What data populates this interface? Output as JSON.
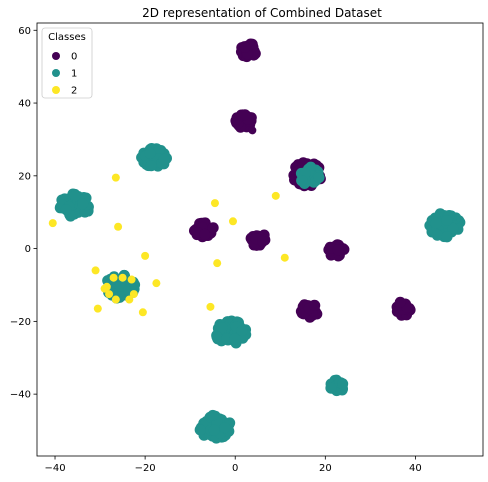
{
  "chart_data": {
    "type": "scatter",
    "title": "2D representation of Combined Dataset",
    "xlabel": "",
    "ylabel": "",
    "xlim": [
      -44,
      55
    ],
    "ylim": [
      -57,
      62
    ],
    "xticks": [
      -40,
      -20,
      0,
      20,
      40
    ],
    "yticks": [
      -40,
      -20,
      0,
      20,
      40,
      60
    ],
    "grid": false,
    "legend": {
      "title": "Classes",
      "placement": "top-left",
      "entries": [
        "0",
        "1",
        "2"
      ]
    },
    "series": [
      {
        "name": "0",
        "color": "#440154",
        "clusters": [
          {
            "cx": 3,
            "cy": 54.5,
            "rx": 1.8,
            "ry": 2.0,
            "n": 28
          },
          {
            "cx": 2,
            "cy": 35,
            "rx": 1.9,
            "ry": 2.0,
            "n": 28
          },
          {
            "cx": 16,
            "cy": 20.5,
            "rx": 3.3,
            "ry": 3.3,
            "n": 60
          },
          {
            "cx": -7,
            "cy": 5.2,
            "rx": 2.2,
            "ry": 2.0,
            "n": 30
          },
          {
            "cx": 5,
            "cy": 2.6,
            "rx": 1.8,
            "ry": 1.9,
            "n": 26
          },
          {
            "cx": 22.5,
            "cy": -0.5,
            "rx": 1.8,
            "ry": 1.8,
            "n": 26
          },
          {
            "cx": 16.5,
            "cy": -17,
            "rx": 1.9,
            "ry": 2.0,
            "n": 28
          },
          {
            "cx": 37.5,
            "cy": -16.5,
            "rx": 1.9,
            "ry": 2.0,
            "n": 28
          }
        ],
        "points": [
          {
            "x": 3.8,
            "y": 32.5
          }
        ]
      },
      {
        "name": "1",
        "color": "#21918c",
        "clusters": [
          {
            "cx": -18,
            "cy": 25,
            "rx": 2.8,
            "ry": 2.7,
            "n": 50
          },
          {
            "cx": -35.5,
            "cy": 12,
            "rx": 3.5,
            "ry": 3.3,
            "n": 60
          },
          {
            "cx": 46.5,
            "cy": 6.5,
            "rx": 3.6,
            "ry": 3.4,
            "n": 60
          },
          {
            "cx": 16.5,
            "cy": 20,
            "rx": 2.2,
            "ry": 2.6,
            "n": 28
          },
          {
            "cx": -25.5,
            "cy": -10.5,
            "rx": 3.5,
            "ry": 3.3,
            "n": 60
          },
          {
            "cx": -1,
            "cy": -23,
            "rx": 3.5,
            "ry": 3.4,
            "n": 60
          },
          {
            "cx": 22.5,
            "cy": -38,
            "rx": 1.6,
            "ry": 1.9,
            "n": 22
          },
          {
            "cx": -4.5,
            "cy": -49,
            "rx": 3.6,
            "ry": 3.2,
            "n": 60
          }
        ],
        "points": []
      },
      {
        "name": "2",
        "color": "#fde725",
        "clusters": [],
        "points": [
          {
            "x": -40.5,
            "y": 7
          },
          {
            "x": -26.5,
            "y": 19.5
          },
          {
            "x": -26,
            "y": 6
          },
          {
            "x": -4.5,
            "y": 12.5
          },
          {
            "x": -0.5,
            "y": 7.5
          },
          {
            "x": 9,
            "y": 14.5
          },
          {
            "x": 11,
            "y": -2.5
          },
          {
            "x": -4,
            "y": -4
          },
          {
            "x": -20,
            "y": -2
          },
          {
            "x": -31,
            "y": -6
          },
          {
            "x": -30.5,
            "y": -16.5
          },
          {
            "x": -20.5,
            "y": -17.5
          },
          {
            "x": -17.5,
            "y": -9.5
          },
          {
            "x": -5.5,
            "y": -16
          },
          {
            "x": -28.5,
            "y": -10.5
          },
          {
            "x": -27,
            "y": -8
          },
          {
            "x": -25,
            "y": -8
          },
          {
            "x": -23,
            "y": -8.5
          },
          {
            "x": -22.5,
            "y": -12.5
          },
          {
            "x": -23.5,
            "y": -14
          },
          {
            "x": -26.5,
            "y": -14
          },
          {
            "x": -28,
            "y": -12.5
          },
          {
            "x": -29,
            "y": -11
          }
        ]
      }
    ]
  }
}
